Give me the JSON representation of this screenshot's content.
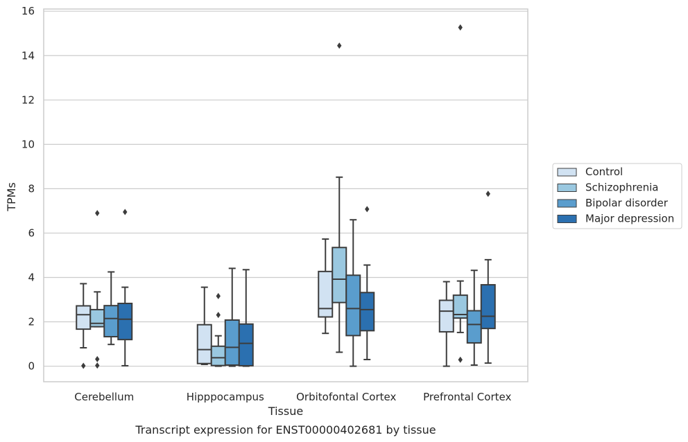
{
  "chart_data": {
    "type": "box",
    "title": "",
    "caption": "Transcript expression for ENST00000402681 by tissue",
    "xlabel": "Tissue",
    "ylabel": "TPMs",
    "ylim": [
      -0.7,
      16.1
    ],
    "yticks": [
      0,
      2,
      4,
      6,
      8,
      10,
      12,
      14,
      16
    ],
    "grid": "horizontal",
    "legend_position": "right",
    "categories": [
      "Cerebellum",
      "Hipppocampus",
      "Orbitofontal Cortex",
      "Prefrontal Cortex"
    ],
    "series": [
      {
        "name": "Control",
        "color": "#d1e2f2",
        "boxes": [
          {
            "whislo": 0.83,
            "q1": 1.67,
            "med": 2.32,
            "q3": 2.72,
            "whishi": 3.72,
            "fliers": [
              0.02
            ]
          },
          {
            "whislo": 0.08,
            "q1": 0.12,
            "med": 0.75,
            "q3": 1.87,
            "whishi": 3.56,
            "fliers": []
          },
          {
            "whislo": 1.48,
            "q1": 2.22,
            "med": 2.6,
            "q3": 4.27,
            "whishi": 5.73,
            "fliers": []
          },
          {
            "whislo": 0.0,
            "q1": 1.55,
            "med": 2.48,
            "q3": 2.97,
            "whishi": 3.81,
            "fliers": []
          }
        ]
      },
      {
        "name": "Schizophrenia",
        "color": "#9ac8e0",
        "boxes": [
          {
            "whislo": 1.78,
            "q1": 1.78,
            "med": 1.93,
            "q3": 2.55,
            "whishi": 3.35,
            "fliers": [
              6.9,
              0.32,
              0.03
            ]
          },
          {
            "whislo": 0.0,
            "q1": 0.03,
            "med": 0.38,
            "q3": 0.9,
            "whishi": 1.37,
            "fliers": [
              3.16,
              2.31
            ]
          },
          {
            "whislo": 0.63,
            "q1": 2.87,
            "med": 3.92,
            "q3": 5.35,
            "whishi": 8.52,
            "fliers": [
              14.45
            ]
          },
          {
            "whislo": 1.52,
            "q1": 2.17,
            "med": 2.33,
            "q3": 3.2,
            "whishi": 3.84,
            "fliers": [
              15.27,
              0.29
            ]
          }
        ]
      },
      {
        "name": "Bipolar disorder",
        "color": "#5a9dcd",
        "boxes": [
          {
            "whislo": 0.98,
            "q1": 1.33,
            "med": 2.15,
            "q3": 2.73,
            "whishi": 4.25,
            "fliers": []
          },
          {
            "whislo": 0.0,
            "q1": 0.05,
            "med": 0.85,
            "q3": 2.08,
            "whishi": 4.41,
            "fliers": []
          },
          {
            "whislo": 0.0,
            "q1": 1.38,
            "med": 2.6,
            "q3": 4.1,
            "whishi": 6.6,
            "fliers": []
          },
          {
            "whislo": 0.05,
            "q1": 1.05,
            "med": 1.88,
            "q3": 2.5,
            "whishi": 4.32,
            "fliers": []
          }
        ]
      },
      {
        "name": "Major depression",
        "color": "#2b70b0",
        "boxes": [
          {
            "whislo": 0.02,
            "q1": 1.2,
            "med": 2.12,
            "q3": 2.83,
            "whishi": 3.56,
            "fliers": [
              6.95
            ]
          },
          {
            "whislo": 0.0,
            "q1": 0.02,
            "med": 1.03,
            "q3": 1.9,
            "whishi": 4.35,
            "fliers": []
          },
          {
            "whislo": 0.3,
            "q1": 1.6,
            "med": 2.55,
            "q3": 3.32,
            "whishi": 4.56,
            "fliers": [
              7.08
            ]
          },
          {
            "whislo": 0.14,
            "q1": 1.7,
            "med": 2.25,
            "q3": 3.67,
            "whishi": 4.8,
            "fliers": [
              7.77
            ]
          }
        ]
      }
    ]
  }
}
